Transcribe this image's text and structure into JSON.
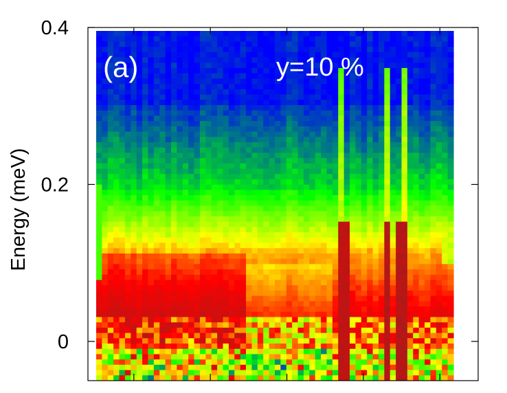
{
  "chart_data": {
    "type": "heatmap",
    "ylabel": "Energy (meV)",
    "xlabel": "",
    "ylim": [
      -0.05,
      0.4
    ],
    "yticks": [
      {
        "value": 0,
        "label": "0"
      },
      {
        "value": 0.2,
        "label": "0.2"
      },
      {
        "value": 0.4,
        "label": "0.4"
      }
    ],
    "xticks": [
      0.1,
      0.3,
      0.5,
      0.7,
      0.9
    ],
    "xlim": [
      -0.02,
      1.0
    ],
    "panel_label": "(a)",
    "annotation": "y=10 %",
    "colormap": [
      "#0000ff",
      "#00ff00",
      "#ffff00",
      "#ff0000",
      "#a51c1c"
    ],
    "colormap_levels": "low intensity = blue, high intensity = dark red",
    "grid": false
  }
}
